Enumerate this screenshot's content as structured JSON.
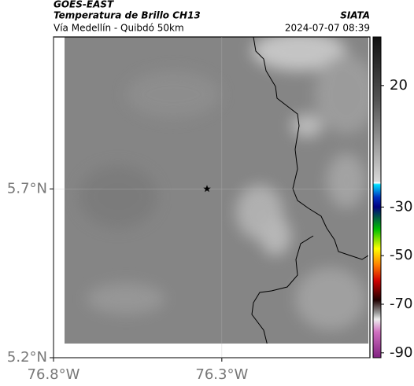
{
  "header": {
    "title": "GOES-EAST",
    "subtitle": "Temperatura de Brillo CH13",
    "location": "Vía Medellín - Quibdó 50km",
    "source": "SIATA",
    "datetime": "2024-07-07 08:39"
  },
  "map": {
    "xlim": [
      -76.8,
      -75.86
    ],
    "ylim": [
      5.2,
      6.15
    ],
    "xticks": [
      {
        "value": -76.8,
        "label": "76.8°W"
      },
      {
        "value": -76.3,
        "label": "76.3°W"
      }
    ],
    "yticks": [
      {
        "value": 5.7,
        "label": "5.7°N"
      },
      {
        "value": 5.2,
        "label": "5.2°N"
      }
    ],
    "marker": {
      "lon": -76.344,
      "lat": 5.7
    }
  },
  "colorbar": {
    "clim": [
      -92,
      40
    ],
    "ticks": [
      20,
      -30,
      -50,
      -70,
      -90
    ]
  }
}
